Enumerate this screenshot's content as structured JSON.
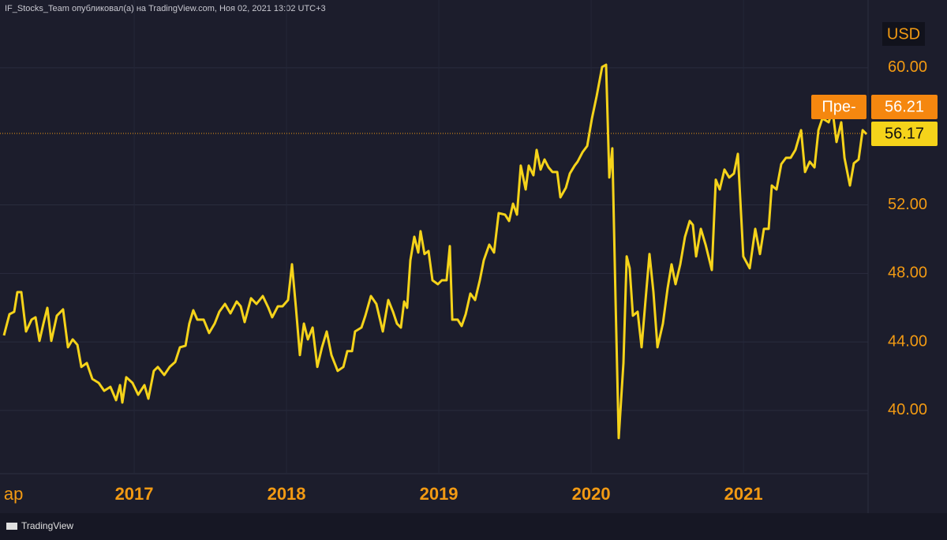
{
  "chart_data": {
    "type": "line",
    "title": "IF_Stocks_Team опубликовал(а) на TradingView.com, Ноя 02, 2021 13:02 UTC+3",
    "y_unit": "USD",
    "source": "TradingView",
    "color": "#f5d31a",
    "grid": true,
    "xlim": [
      2016.119,
      2021.818
    ],
    "xticks": [
      {
        "value": 2016.17,
        "label": "ap"
      },
      2017,
      2018,
      2019,
      2020,
      2021
    ],
    "ylim": [
      36.31,
      63.96
    ],
    "yticks": [
      {
        "value": 40,
        "label": "40.00"
      },
      {
        "value": 44,
        "label": "44.00"
      },
      {
        "value": 48,
        "label": "48.00"
      },
      {
        "value": 52,
        "label": "52.00"
      },
      {
        "value": 60,
        "label": "60.00"
      }
    ],
    "last_price": 56.17,
    "prev_close": {
      "label": "Пре-",
      "value": 56.21
    },
    "x": [
      2016.145,
      2016.181,
      2016.212,
      2016.233,
      2016.259,
      2016.29,
      2016.326,
      2016.352,
      2016.378,
      2016.404,
      2016.43,
      2016.456,
      2016.492,
      2016.533,
      2016.565,
      2016.596,
      2016.627,
      2016.653,
      2016.689,
      2016.725,
      2016.767,
      2016.803,
      2016.844,
      2016.881,
      2016.907,
      2016.922,
      2016.948,
      2016.989,
      2017.026,
      2017.067,
      2017.093,
      2017.129,
      2017.155,
      2017.197,
      2017.233,
      2017.269,
      2017.3,
      2017.337,
      2017.362,
      2017.388,
      2017.414,
      2017.456,
      2017.492,
      2017.528,
      2017.559,
      2017.596,
      2017.632,
      2017.673,
      2017.699,
      2017.725,
      2017.767,
      2017.803,
      2017.844,
      2017.881,
      2017.906,
      2017.943,
      2017.974,
      2018.01,
      2018.036,
      2018.062,
      2018.088,
      2018.114,
      2018.14,
      2018.171,
      2018.202,
      2018.233,
      2018.264,
      2018.295,
      2018.336,
      2018.373,
      2018.399,
      2018.43,
      2018.45,
      2018.492,
      2018.518,
      2018.554,
      2018.59,
      2018.632,
      2018.668,
      2018.699,
      2018.725,
      2018.751,
      2018.772,
      2018.792,
      2018.813,
      2018.839,
      2018.865,
      2018.88,
      2018.906,
      2018.932,
      2018.958,
      2018.994,
      2019.02,
      2019.051,
      2019.072,
      2019.088,
      2019.124,
      2019.15,
      2019.176,
      2019.207,
      2019.238,
      2019.269,
      2019.295,
      2019.331,
      2019.362,
      2019.393,
      2019.435,
      2019.461,
      2019.487,
      2019.513,
      2019.538,
      2019.57,
      2019.59,
      2019.621,
      2019.642,
      2019.668,
      2019.694,
      2019.72,
      2019.746,
      2019.777,
      2019.798,
      2019.834,
      2019.86,
      2019.891,
      2019.911,
      2019.943,
      2019.974,
      2020.005,
      2020.036,
      2020.072,
      2020.098,
      2020.119,
      2020.139,
      2020.16,
      2020.181,
      2020.212,
      2020.233,
      2020.253,
      2020.274,
      2020.305,
      2020.331,
      2020.357,
      2020.383,
      2020.409,
      2020.435,
      2020.471,
      2020.502,
      2020.528,
      2020.554,
      2020.585,
      2020.616,
      2020.647,
      2020.668,
      2020.689,
      2020.72,
      2020.751,
      2020.792,
      2020.818,
      2020.844,
      2020.875,
      2020.906,
      2020.937,
      2020.963,
      2020.999,
      2021.041,
      2021.077,
      2021.108,
      2021.134,
      2021.165,
      2021.186,
      2021.217,
      2021.248,
      2021.279,
      2021.31,
      2021.341,
      2021.378,
      2021.404,
      2021.435,
      2021.466,
      2021.492,
      2021.518,
      2021.559,
      2021.585,
      2021.611,
      2021.642,
      2021.663,
      2021.699,
      2021.725,
      2021.756,
      2021.782,
      2021.808
    ],
    "values": [
      44.38,
      45.62,
      45.76,
      46.91,
      46.91,
      44.61,
      45.3,
      45.44,
      44.06,
      45.07,
      45.99,
      44.06,
      45.53,
      45.9,
      43.69,
      44.15,
      43.83,
      42.54,
      42.77,
      41.84,
      41.61,
      41.15,
      41.38,
      40.6,
      41.48,
      40.46,
      41.94,
      41.61,
      40.92,
      41.48,
      40.69,
      42.31,
      42.54,
      42.07,
      42.54,
      42.83,
      43.69,
      43.78,
      45.07,
      45.85,
      45.3,
      45.3,
      44.52,
      45.07,
      45.76,
      46.22,
      45.67,
      46.36,
      46.08,
      45.16,
      46.55,
      46.22,
      46.68,
      45.99,
      45.44,
      46.08,
      46.08,
      46.45,
      48.53,
      45.99,
      43.23,
      45.07,
      44.15,
      44.84,
      42.54,
      43.69,
      44.61,
      43.23,
      42.31,
      42.54,
      43.46,
      43.46,
      44.61,
      44.84,
      45.53,
      46.68,
      46.22,
      44.61,
      46.45,
      45.76,
      45.07,
      44.84,
      46.36,
      45.99,
      48.76,
      50.14,
      49.22,
      50.46,
      49.13,
      49.31,
      47.6,
      47.37,
      47.6,
      47.6,
      49.59,
      45.3,
      45.3,
      44.93,
      45.62,
      46.82,
      46.45,
      47.6,
      48.76,
      49.68,
      49.22,
      51.52,
      51.43,
      51.06,
      52.07,
      51.43,
      54.29,
      52.9,
      54.29,
      53.73,
      55.21,
      54.06,
      54.65,
      54.19,
      53.92,
      53.92,
      52.44,
      53.0,
      53.83,
      54.29,
      54.52,
      55.07,
      55.44,
      57.05,
      58.34,
      60.05,
      60.18,
      53.6,
      55.3,
      46.45,
      38.39,
      42.77,
      48.99,
      48.3,
      45.53,
      45.76,
      43.69,
      46.45,
      49.13,
      46.91,
      43.69,
      45.07,
      47.14,
      48.53,
      47.37,
      48.53,
      50.14,
      51.06,
      50.83,
      48.99,
      50.6,
      49.68,
      48.2,
      53.47,
      52.9,
      54.06,
      53.6,
      53.83,
      54.98,
      48.99,
      48.3,
      50.6,
      49.13,
      50.6,
      50.6,
      53.13,
      52.9,
      54.38,
      54.75,
      54.75,
      55.21,
      56.36,
      53.92,
      54.52,
      54.19,
      56.36,
      57.05,
      56.82,
      57.51,
      55.67,
      56.82,
      54.75,
      53.13,
      54.43,
      54.65,
      56.36,
      56.13
    ]
  }
}
